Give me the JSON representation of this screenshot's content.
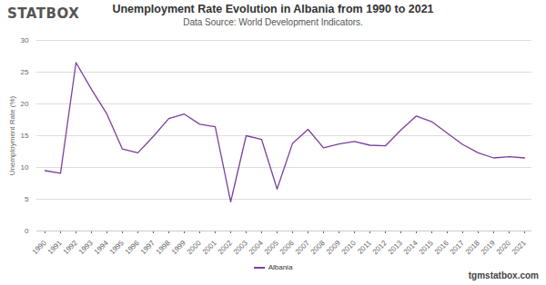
{
  "chart_data": {
    "type": "line",
    "title": "Unemployment Rate Evolution in Albania from 1990 to 2021",
    "subtitle": "Data Source: World Development Indicators.",
    "logo": "STATBOX",
    "caption": "tgmstatbox.com",
    "y_label": "Unemployment Rate (%)",
    "categories": [
      "1990",
      "1991",
      "1992",
      "1993",
      "1994",
      "1995",
      "1996",
      "1997",
      "1998",
      "1999",
      "2000",
      "2001",
      "2002",
      "2003",
      "2004",
      "2005",
      "2006",
      "2007",
      "2008",
      "2009",
      "2010",
      "2011",
      "2012",
      "2013",
      "2014",
      "2015",
      "2016",
      "2017",
      "2018",
      "2019",
      "2020",
      "2021"
    ],
    "series": [
      {
        "name": "Albania",
        "color": "#7b3f9e",
        "values": [
          9.5,
          9.1,
          26.5,
          22.3,
          18.4,
          12.9,
          12.3,
          14.9,
          17.7,
          18.4,
          16.8,
          16.4,
          4.6,
          15.0,
          14.4,
          6.6,
          13.8,
          16.0,
          13.1,
          13.7,
          14.1,
          13.5,
          13.4,
          15.9,
          18.1,
          17.2,
          15.4,
          13.6,
          12.3,
          11.5,
          11.7,
          11.5
        ]
      }
    ],
    "ylim": [
      0,
      30
    ],
    "yticks": [
      0,
      5,
      10,
      15,
      20,
      25,
      30
    ],
    "grid": true,
    "legend": "bottom"
  }
}
